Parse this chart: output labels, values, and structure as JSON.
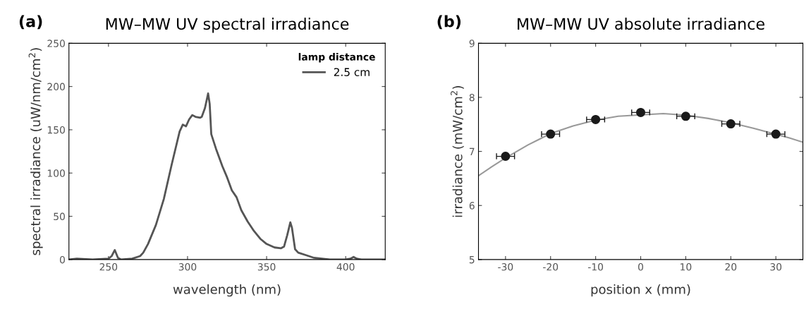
{
  "chart_data": [
    {
      "type": "line",
      "title": "MW–MW UV spectral irradiance",
      "xlabel": "wavelength (nm)",
      "ylabel": "spectral irradiance (uW/nm/cm$^{2}$)",
      "legend_title": "lamp distance",
      "legend": "top right",
      "annotations": [
        "(a)"
      ],
      "xlim": [
        225,
        425
      ],
      "xticks": [
        250,
        300,
        350,
        400
      ],
      "ylim": [
        0,
        250
      ],
      "yticks": [
        0,
        50,
        100,
        150,
        200,
        250
      ],
      "series": [
        {
          "name": "2.5 cm",
          "color": "#555555",
          "x": [
            225,
            230,
            240,
            250,
            252,
            254,
            256,
            258,
            265,
            270,
            272,
            275,
            280,
            285,
            290,
            295,
            297,
            299,
            301,
            303,
            305,
            308,
            309,
            311,
            313,
            314,
            315,
            318,
            322,
            325,
            328,
            331,
            334,
            338,
            342,
            346,
            350,
            355,
            359,
            361,
            363,
            365,
            366,
            368,
            370,
            375,
            380,
            385,
            390,
            400,
            403,
            405,
            407,
            410,
            425
          ],
          "values": [
            0,
            1,
            0,
            1,
            4,
            11,
            2,
            0,
            1,
            4,
            8,
            18,
            40,
            70,
            110,
            148,
            156,
            154,
            162,
            167,
            165,
            164,
            165,
            175,
            192,
            180,
            145,
            128,
            108,
            95,
            80,
            72,
            57,
            44,
            33,
            24,
            18,
            14,
            13,
            15,
            28,
            43,
            37,
            12,
            8,
            5,
            2,
            1,
            0,
            0,
            1,
            3,
            1,
            0,
            0
          ]
        }
      ]
    },
    {
      "type": "scatter",
      "title": "MW–MW UV absolute irradiance",
      "xlabel": "position x (mm)",
      "ylabel": "irradiance (mW/cm$^{2}$)",
      "annotations": [
        "(b)"
      ],
      "xlim": [
        -36,
        36
      ],
      "xticks": [
        -30,
        -20,
        -10,
        0,
        10,
        20,
        30
      ],
      "ylim": [
        5,
        9
      ],
      "yticks": [
        5,
        6,
        7,
        8,
        9
      ],
      "series": [
        {
          "type": "line",
          "color": "#999999",
          "x": [
            -36,
            -33,
            -30,
            -25,
            -20,
            -15,
            -10,
            -5,
            5,
            10,
            15,
            20,
            25,
            33,
            36
          ],
          "values": [
            6.55,
            6.72,
            6.88,
            7.12,
            7.33,
            7.47,
            7.58,
            7.65,
            7.7,
            7.67,
            7.61,
            7.53,
            7.43,
            7.25,
            7.17
          ]
        },
        {
          "type": "scatter",
          "marker": "circle",
          "color": "#1a1a1a",
          "x": [
            -30,
            -20,
            -10,
            0,
            10,
            20,
            30
          ],
          "values": [
            6.91,
            7.32,
            7.59,
            7.72,
            7.65,
            7.51,
            7.32
          ],
          "xerrors": [
            2,
            2,
            2,
            2,
            2,
            2,
            2
          ]
        }
      ]
    }
  ]
}
